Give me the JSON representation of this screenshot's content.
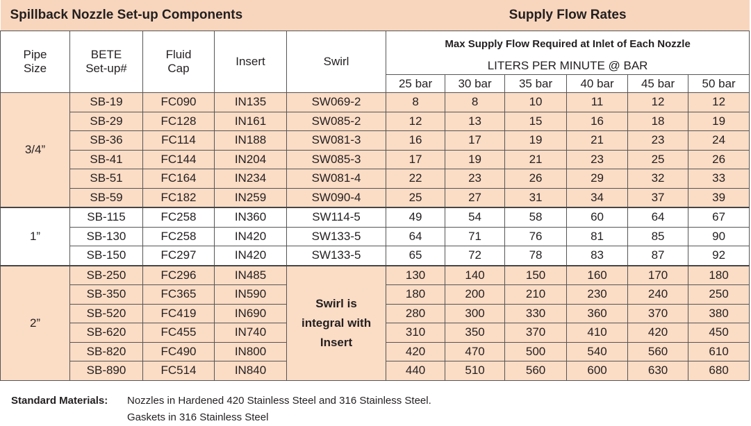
{
  "header": {
    "left": "Spillback Nozzle Set-up Components",
    "right": "Supply Flow Rates"
  },
  "columns": {
    "pipe_size": "Pipe Size",
    "setup": "BETE Set-up#",
    "cap": "Fluid Cap",
    "insert": "Insert",
    "swirl": "Swirl"
  },
  "flow_header": {
    "title": "Max Supply Flow Required at Inlet of Each Nozzle",
    "units": "LITERS PER MINUTE @ BAR",
    "pressures": [
      "25 bar",
      "30 bar",
      "35 bar",
      "40 bar",
      "45 bar",
      "50 bar"
    ]
  },
  "groups": [
    {
      "pipe_size": "3/4”",
      "rows": [
        [
          "SB-19",
          "FC090",
          "IN135",
          "SW069-2",
          8,
          8,
          10,
          11,
          12,
          12
        ],
        [
          "SB-29",
          "FC128",
          "IN161",
          "SW085-2",
          12,
          13,
          15,
          16,
          18,
          19
        ],
        [
          "SB-36",
          "FC114",
          "IN188",
          "SW081-3",
          16,
          17,
          19,
          21,
          23,
          24
        ],
        [
          "SB-41",
          "FC144",
          "IN204",
          "SW085-3",
          17,
          19,
          21,
          23,
          25,
          26
        ],
        [
          "SB-51",
          "FC164",
          "IN234",
          "SW081-4",
          22,
          23,
          26,
          29,
          32,
          33
        ],
        [
          "SB-59",
          "FC182",
          "IN259",
          "SW090-4",
          25,
          27,
          31,
          34,
          37,
          39
        ]
      ]
    },
    {
      "pipe_size": "1”",
      "rows": [
        [
          "SB-115",
          "FC258",
          "IN360",
          "SW114-5",
          49,
          54,
          58,
          60,
          64,
          67
        ],
        [
          "SB-130",
          "FC258",
          "IN420",
          "SW133-5",
          64,
          71,
          76,
          81,
          85,
          90
        ],
        [
          "SB-150",
          "FC297",
          "IN420",
          "SW133-5",
          65,
          72,
          78,
          83,
          87,
          92
        ]
      ]
    },
    {
      "pipe_size": "2”",
      "swirl": "Swirl is integral with Insert",
      "rows": [
        [
          "SB-250",
          "FC296",
          "IN485",
          130,
          140,
          150,
          160,
          170,
          180
        ],
        [
          "SB-350",
          "FC365",
          "IN590",
          180,
          200,
          210,
          230,
          240,
          250
        ],
        [
          "SB-520",
          "FC419",
          "IN690",
          280,
          300,
          330,
          360,
          370,
          380
        ],
        [
          "SB-620",
          "FC455",
          "IN740",
          310,
          350,
          370,
          410,
          420,
          450
        ],
        [
          "SB-820",
          "FC490",
          "IN800",
          420,
          470,
          500,
          540,
          560,
          610
        ],
        [
          "SB-890",
          "FC514",
          "IN840",
          440,
          510,
          560,
          600,
          630,
          680
        ]
      ]
    }
  ],
  "footer": {
    "label": "Standard Materials:",
    "lines": [
      "Nozzles in Hardened 420 Stainless Steel and 316 Stainless Steel.",
      "Gaskets in 316 Stainless Steel"
    ]
  }
}
